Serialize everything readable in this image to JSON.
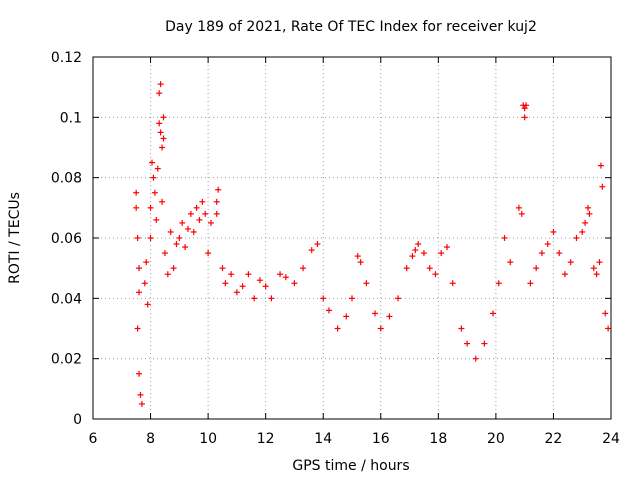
{
  "chart_data": {
    "type": "scatter",
    "title": "Day 189 of 2021, Rate Of TEC Index for receiver kuj2",
    "xlabel": "GPS time / hours",
    "ylabel": "ROTI / TECUs",
    "xlim": [
      6,
      24
    ],
    "ylim": [
      0,
      0.12
    ],
    "xticks": [
      6,
      8,
      10,
      12,
      14,
      16,
      18,
      20,
      22,
      24
    ],
    "xtick_labels": [
      "6",
      "8",
      "10",
      "12",
      "14",
      "16",
      "18",
      "20",
      "22",
      "24"
    ],
    "yticks": [
      0,
      0.02,
      0.04,
      0.06,
      0.08,
      0.1,
      0.12
    ],
    "ytick_labels": [
      "0",
      "0.02",
      "0.04",
      "0.06",
      "0.08",
      "0.1",
      "0.12"
    ],
    "grid": true,
    "marker": "+",
    "color": "#ff0000",
    "series": [
      {
        "name": "ROTI",
        "points": [
          [
            7.5,
            0.075
          ],
          [
            7.5,
            0.07
          ],
          [
            7.55,
            0.06
          ],
          [
            7.6,
            0.05
          ],
          [
            7.6,
            0.042
          ],
          [
            7.55,
            0.03
          ],
          [
            7.6,
            0.015
          ],
          [
            7.65,
            0.008
          ],
          [
            7.7,
            0.005
          ],
          [
            7.8,
            0.045
          ],
          [
            7.85,
            0.052
          ],
          [
            7.9,
            0.038
          ],
          [
            8.0,
            0.06
          ],
          [
            8.0,
            0.07
          ],
          [
            8.05,
            0.085
          ],
          [
            8.1,
            0.08
          ],
          [
            8.15,
            0.075
          ],
          [
            8.2,
            0.066
          ],
          [
            8.25,
            0.083
          ],
          [
            8.3,
            0.098
          ],
          [
            8.3,
            0.108
          ],
          [
            8.35,
            0.111
          ],
          [
            8.35,
            0.095
          ],
          [
            8.4,
            0.09
          ],
          [
            8.45,
            0.093
          ],
          [
            8.45,
            0.1
          ],
          [
            8.4,
            0.072
          ],
          [
            8.5,
            0.055
          ],
          [
            8.6,
            0.048
          ],
          [
            8.7,
            0.062
          ],
          [
            8.8,
            0.05
          ],
          [
            8.9,
            0.058
          ],
          [
            9.0,
            0.06
          ],
          [
            9.1,
            0.065
          ],
          [
            9.2,
            0.057
          ],
          [
            9.3,
            0.063
          ],
          [
            9.4,
            0.068
          ],
          [
            9.5,
            0.062
          ],
          [
            9.6,
            0.07
          ],
          [
            9.7,
            0.066
          ],
          [
            9.8,
            0.072
          ],
          [
            9.9,
            0.068
          ],
          [
            10.0,
            0.055
          ],
          [
            10.1,
            0.065
          ],
          [
            10.3,
            0.072
          ],
          [
            10.35,
            0.076
          ],
          [
            10.3,
            0.068
          ],
          [
            10.5,
            0.05
          ],
          [
            10.6,
            0.045
          ],
          [
            10.8,
            0.048
          ],
          [
            11.0,
            0.042
          ],
          [
            11.2,
            0.044
          ],
          [
            11.4,
            0.048
          ],
          [
            11.6,
            0.04
          ],
          [
            11.8,
            0.046
          ],
          [
            12.0,
            0.044
          ],
          [
            12.2,
            0.04
          ],
          [
            12.5,
            0.048
          ],
          [
            12.7,
            0.047
          ],
          [
            13.0,
            0.045
          ],
          [
            13.3,
            0.05
          ],
          [
            13.6,
            0.056
          ],
          [
            13.8,
            0.058
          ],
          [
            14.0,
            0.04
          ],
          [
            14.2,
            0.036
          ],
          [
            14.5,
            0.03
          ],
          [
            14.8,
            0.034
          ],
          [
            15.0,
            0.04
          ],
          [
            15.2,
            0.054
          ],
          [
            15.3,
            0.052
          ],
          [
            15.5,
            0.045
          ],
          [
            15.8,
            0.035
          ],
          [
            16.0,
            0.03
          ],
          [
            16.3,
            0.034
          ],
          [
            16.6,
            0.04
          ],
          [
            16.9,
            0.05
          ],
          [
            17.1,
            0.054
          ],
          [
            17.2,
            0.056
          ],
          [
            17.3,
            0.058
          ],
          [
            17.5,
            0.055
          ],
          [
            17.7,
            0.05
          ],
          [
            17.9,
            0.048
          ],
          [
            18.1,
            0.055
          ],
          [
            18.3,
            0.057
          ],
          [
            18.5,
            0.045
          ],
          [
            18.8,
            0.03
          ],
          [
            19.0,
            0.025
          ],
          [
            19.3,
            0.02
          ],
          [
            19.6,
            0.025
          ],
          [
            19.9,
            0.035
          ],
          [
            20.1,
            0.045
          ],
          [
            20.3,
            0.06
          ],
          [
            20.5,
            0.052
          ],
          [
            20.8,
            0.07
          ],
          [
            20.9,
            0.068
          ],
          [
            20.95,
            0.104
          ],
          [
            21.0,
            0.103
          ],
          [
            21.05,
            0.104
          ],
          [
            21.0,
            0.1
          ],
          [
            21.2,
            0.045
          ],
          [
            21.4,
            0.05
          ],
          [
            21.6,
            0.055
          ],
          [
            21.8,
            0.058
          ],
          [
            22.0,
            0.062
          ],
          [
            22.2,
            0.055
          ],
          [
            22.4,
            0.048
          ],
          [
            22.6,
            0.052
          ],
          [
            22.8,
            0.06
          ],
          [
            23.0,
            0.062
          ],
          [
            23.1,
            0.065
          ],
          [
            23.2,
            0.07
          ],
          [
            23.25,
            0.068
          ],
          [
            23.4,
            0.05
          ],
          [
            23.5,
            0.048
          ],
          [
            23.6,
            0.052
          ],
          [
            23.65,
            0.084
          ],
          [
            23.7,
            0.077
          ],
          [
            23.8,
            0.035
          ],
          [
            23.9,
            0.03
          ]
        ]
      }
    ]
  }
}
